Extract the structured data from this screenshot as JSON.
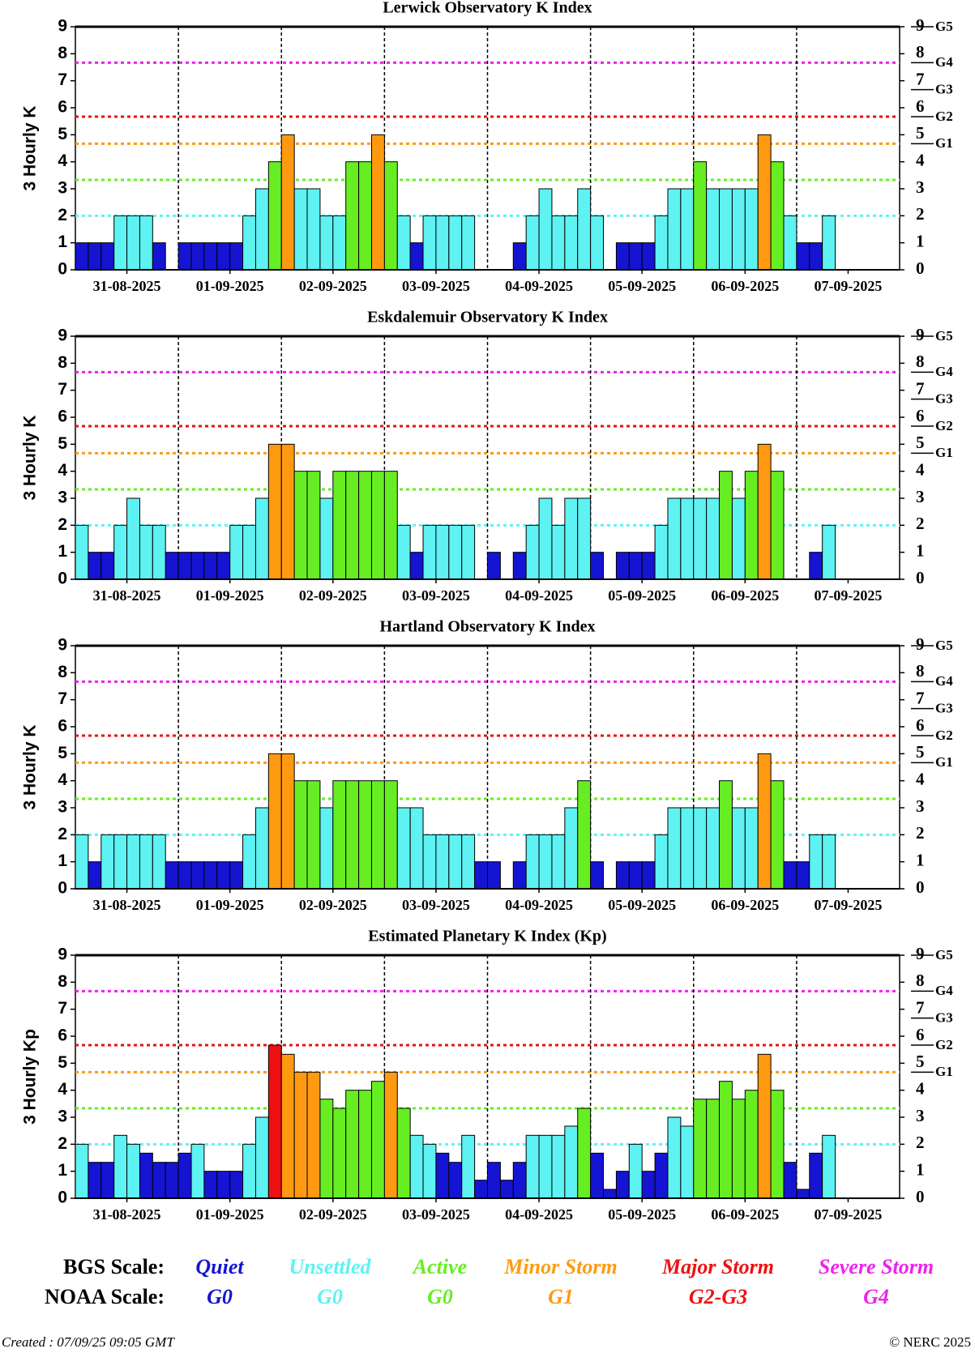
{
  "chart_data": [
    {
      "type": "bar",
      "title": "Lerwick Observatory K Index",
      "y_label": "3 Hourly K",
      "day_labels": [
        "31-08-2025",
        "01-09-2025",
        "02-09-2025",
        "03-09-2025",
        "04-09-2025",
        "05-09-2025",
        "06-09-2025",
        "07-09-2025"
      ],
      "values": [
        1,
        1,
        1,
        2,
        2,
        2,
        1,
        0,
        1,
        1,
        1,
        1,
        1,
        2,
        3,
        4,
        5,
        3,
        3,
        2,
        2,
        4,
        4,
        5,
        4,
        2,
        1,
        2,
        2,
        2,
        2,
        0,
        0,
        0,
        1,
        2,
        3,
        2,
        2,
        3,
        2,
        0,
        1,
        1,
        1,
        2,
        3,
        3,
        4,
        3,
        3,
        3,
        3,
        5,
        4,
        2,
        1,
        1,
        2,
        null,
        null,
        null,
        null,
        null
      ],
      "ylim": [
        0,
        9
      ],
      "yticks": [
        0,
        1,
        2,
        3,
        4,
        5,
        6,
        7,
        8,
        9
      ],
      "y2ticks": [
        0,
        1,
        2,
        3,
        4,
        5,
        6,
        7,
        8,
        9
      ],
      "base_color": "#1414d2",
      "levels": [
        {
          "value": 2,
          "color": "#5ef2f2"
        },
        {
          "value": 3.33,
          "color": "#66ee22"
        },
        {
          "value": 4.67,
          "color": "#ff9a10"
        },
        {
          "value": 5.67,
          "color": "#ee1010"
        },
        {
          "value": 7.67,
          "color": "#ee22ee"
        }
      ],
      "g_levels": [
        {
          "value": 4.67,
          "label": "G1"
        },
        {
          "value": 5.67,
          "label": "G2"
        },
        {
          "value": 6.67,
          "label": "G3"
        },
        {
          "value": 7.67,
          "label": "G4"
        },
        {
          "value": 9,
          "label": "G5"
        }
      ]
    },
    {
      "type": "bar",
      "title": "Eskdalemuir Observatory K Index",
      "y_label": "3 Hourly K",
      "day_labels": [
        "31-08-2025",
        "01-09-2025",
        "02-09-2025",
        "03-09-2025",
        "04-09-2025",
        "05-09-2025",
        "06-09-2025",
        "07-09-2025"
      ],
      "values": [
        2,
        1,
        1,
        2,
        3,
        2,
        2,
        1,
        1,
        1,
        1,
        1,
        2,
        2,
        3,
        5,
        5,
        4,
        4,
        3,
        4,
        4,
        4,
        4,
        4,
        2,
        1,
        2,
        2,
        2,
        2,
        0,
        1,
        0,
        1,
        2,
        3,
        2,
        3,
        3,
        1,
        0,
        1,
        1,
        1,
        2,
        3,
        3,
        3,
        3,
        4,
        3,
        4,
        5,
        4,
        0,
        0,
        1,
        2,
        null,
        null,
        null,
        null,
        null
      ],
      "ylim": [
        0,
        9
      ],
      "yticks": [
        0,
        1,
        2,
        3,
        4,
        5,
        6,
        7,
        8,
        9
      ],
      "y2ticks": [
        0,
        1,
        2,
        3,
        4,
        5,
        6,
        7,
        8,
        9
      ],
      "base_color": "#1414d2",
      "levels": [
        {
          "value": 2,
          "color": "#5ef2f2"
        },
        {
          "value": 3.33,
          "color": "#66ee22"
        },
        {
          "value": 4.67,
          "color": "#ff9a10"
        },
        {
          "value": 5.67,
          "color": "#ee1010"
        },
        {
          "value": 7.67,
          "color": "#ee22ee"
        }
      ],
      "g_levels": [
        {
          "value": 4.67,
          "label": "G1"
        },
        {
          "value": 5.67,
          "label": "G2"
        },
        {
          "value": 6.67,
          "label": "G3"
        },
        {
          "value": 7.67,
          "label": "G4"
        },
        {
          "value": 9,
          "label": "G5"
        }
      ]
    },
    {
      "type": "bar",
      "title": "Hartland Observatory K Index",
      "y_label": "3 Hourly K",
      "day_labels": [
        "31-08-2025",
        "01-09-2025",
        "02-09-2025",
        "03-09-2025",
        "04-09-2025",
        "05-09-2025",
        "06-09-2025",
        "07-09-2025"
      ],
      "values": [
        2,
        1,
        2,
        2,
        2,
        2,
        2,
        1,
        1,
        1,
        1,
        1,
        1,
        2,
        3,
        5,
        5,
        4,
        4,
        3,
        4,
        4,
        4,
        4,
        4,
        3,
        3,
        2,
        2,
        2,
        2,
        1,
        1,
        0,
        1,
        2,
        2,
        2,
        3,
        4,
        1,
        0,
        1,
        1,
        1,
        2,
        3,
        3,
        3,
        3,
        4,
        3,
        3,
        5,
        4,
        1,
        1,
        2,
        2,
        null,
        null,
        null,
        null,
        null
      ],
      "ylim": [
        0,
        9
      ],
      "yticks": [
        0,
        1,
        2,
        3,
        4,
        5,
        6,
        7,
        8,
        9
      ],
      "y2ticks": [
        0,
        1,
        2,
        3,
        4,
        5,
        6,
        7,
        8,
        9
      ],
      "base_color": "#1414d2",
      "levels": [
        {
          "value": 2,
          "color": "#5ef2f2"
        },
        {
          "value": 3.33,
          "color": "#66ee22"
        },
        {
          "value": 4.67,
          "color": "#ff9a10"
        },
        {
          "value": 5.67,
          "color": "#ee1010"
        },
        {
          "value": 7.67,
          "color": "#ee22ee"
        }
      ],
      "g_levels": [
        {
          "value": 4.67,
          "label": "G1"
        },
        {
          "value": 5.67,
          "label": "G2"
        },
        {
          "value": 6.67,
          "label": "G3"
        },
        {
          "value": 7.67,
          "label": "G4"
        },
        {
          "value": 9,
          "label": "G5"
        }
      ]
    },
    {
      "type": "bar",
      "title": "Estimated Planetary K Index (Kp)",
      "y_label": "3 Hourly Kp",
      "day_labels": [
        "31-08-2025",
        "01-09-2025",
        "02-09-2025",
        "03-09-2025",
        "04-09-2025",
        "05-09-2025",
        "06-09-2025",
        "07-09-2025"
      ],
      "values": [
        2,
        1.33,
        1.33,
        2.33,
        2,
        1.67,
        1.33,
        1.33,
        1.67,
        2,
        1,
        1,
        1,
        2,
        3,
        5.67,
        5.33,
        4.67,
        4.67,
        3.67,
        3.33,
        4,
        4,
        4.33,
        4.67,
        3.33,
        2.33,
        2,
        1.67,
        1.33,
        2.33,
        0.67,
        1.33,
        0.67,
        1.33,
        2.33,
        2.33,
        2.33,
        2.67,
        3.33,
        1.67,
        0.33,
        1,
        2,
        1,
        1.67,
        3,
        2.67,
        3.67,
        3.67,
        4.33,
        3.67,
        4,
        5.33,
        4,
        1.33,
        0.33,
        1.67,
        2.33,
        null,
        null,
        null,
        null,
        null
      ],
      "ylim": [
        0,
        9
      ],
      "yticks": [
        0,
        1,
        2,
        3,
        4,
        5,
        6,
        7,
        8,
        9
      ],
      "y2ticks": [
        0,
        1,
        2,
        3,
        4,
        5,
        6,
        7,
        8,
        9
      ],
      "base_color": "#1414d2",
      "levels": [
        {
          "value": 2,
          "color": "#5ef2f2"
        },
        {
          "value": 3.33,
          "color": "#66ee22"
        },
        {
          "value": 4.67,
          "color": "#ff9a10"
        },
        {
          "value": 5.67,
          "color": "#ee1010"
        },
        {
          "value": 7.67,
          "color": "#ee22ee"
        }
      ],
      "g_levels": [
        {
          "value": 4.67,
          "label": "G1"
        },
        {
          "value": 5.67,
          "label": "G2"
        },
        {
          "value": 6.67,
          "label": "G3"
        },
        {
          "value": 7.67,
          "label": "G4"
        },
        {
          "value": 9,
          "label": "G5"
        }
      ]
    }
  ],
  "legend": {
    "bgs_label": "BGS Scale:",
    "noaa_label": "NOAA Scale:",
    "items": [
      {
        "bgs": "Quiet",
        "noaa": "G0",
        "color": "#1414d2"
      },
      {
        "bgs": "Unsettled",
        "noaa": "G0",
        "color": "#5ef2f2"
      },
      {
        "bgs": "Active",
        "noaa": "G0",
        "color": "#66ee22"
      },
      {
        "bgs": "Minor Storm",
        "noaa": "G1",
        "color": "#ff9a10"
      },
      {
        "bgs": "Major Storm",
        "noaa": "G2-G3",
        "color": "#ee1010"
      },
      {
        "bgs": "Severe Storm",
        "noaa": "G4",
        "color": "#ee22ee"
      }
    ]
  },
  "footer": {
    "created": "Created : 07/09/25 09:05 GMT",
    "copyright": "© NERC 2025"
  }
}
